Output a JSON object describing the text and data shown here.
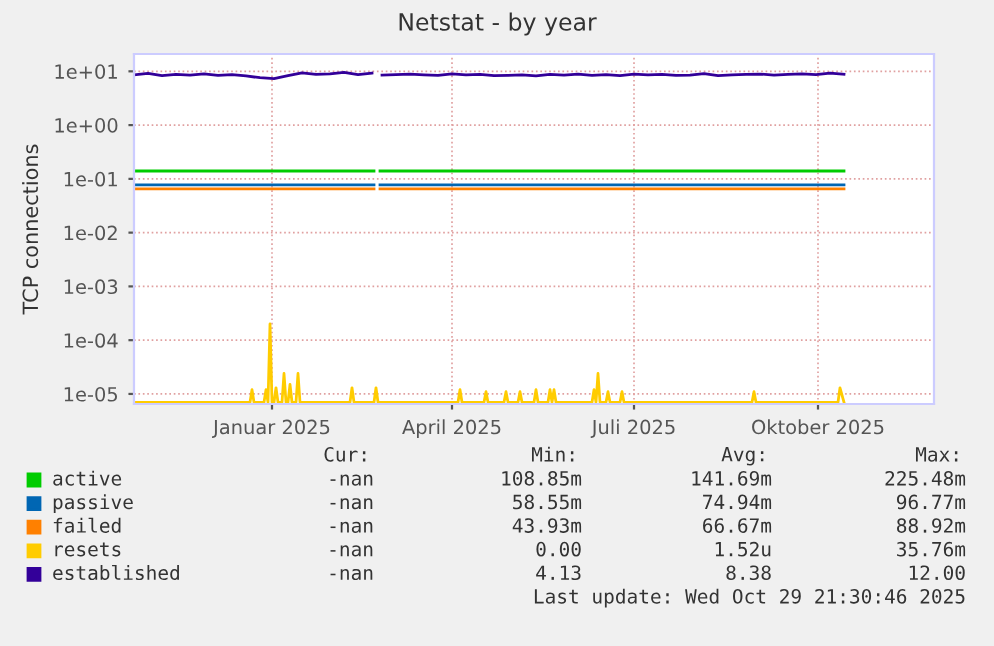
{
  "chart_data": {
    "type": "line",
    "title": "Netstat - by year",
    "ylabel": "TCP connections",
    "log": "y",
    "grid": true,
    "legend": "bottom",
    "marker": "none",
    "line_style": "solid",
    "xlim": [
      "2024-10-24",
      "2025-11-28"
    ],
    "xticks": [
      {
        "value": "2025-01-01",
        "label": "Januar 2025"
      },
      {
        "value": "2025-04-01",
        "label": "April 2025"
      },
      {
        "value": "2025-07-01",
        "label": "Juli 2025"
      },
      {
        "value": "2025-10-01",
        "label": "Oktober 2025"
      }
    ],
    "ylim": [
      6.5e-06,
      21
    ],
    "yticks": [
      {
        "value": 1e-05,
        "label": "1e-05"
      },
      {
        "value": 0.0001,
        "label": "1e-04"
      },
      {
        "value": 0.001,
        "label": "1e-03"
      },
      {
        "value": 0.01,
        "label": "1e-02"
      },
      {
        "value": 0.1,
        "label": "1e-01"
      },
      {
        "value": 1,
        "label": "1e+00"
      },
      {
        "value": 10,
        "label": "1e+01"
      }
    ],
    "series": [
      {
        "name": "active",
        "color": "#00cc00",
        "x": [
          "2024-10-24",
          "2025-02-21",
          "2025-02-22",
          "2025-02-24",
          "2025-10-14"
        ],
        "values": [
          0.14,
          0.14,
          null,
          0.14,
          0.14
        ]
      },
      {
        "name": "passive",
        "color": "#0066b3",
        "x": [
          "2024-10-24",
          "2025-02-21",
          "2025-02-22",
          "2025-02-24",
          "2025-10-14"
        ],
        "values": [
          0.077,
          0.077,
          null,
          0.077,
          0.077
        ]
      },
      {
        "name": "failed",
        "color": "#ff8000",
        "x": [
          "2024-10-24",
          "2025-02-21",
          "2025-02-22",
          "2025-02-24",
          "2025-10-14"
        ],
        "values": [
          0.065,
          0.065,
          null,
          0.065,
          0.065
        ]
      },
      {
        "name": "resets",
        "color": "#ffcc00",
        "x": [
          "2024-10-24",
          "2024-12-21",
          "2024-12-22",
          "2024-12-23",
          "2024-12-28",
          "2024-12-29",
          "2024-12-30",
          "2024-12-31",
          "2025-01-01",
          "2025-01-02",
          "2025-01-03",
          "2025-01-04",
          "2025-01-06",
          "2025-01-07",
          "2025-01-08",
          "2025-01-09",
          "2025-01-10",
          "2025-01-11",
          "2025-01-13",
          "2025-01-14",
          "2025-01-15",
          "2025-02-09",
          "2025-02-10",
          "2025-02-11",
          "2025-02-21",
          "2025-02-22",
          "2025-02-23",
          "2025-04-04",
          "2025-04-05",
          "2025-04-06",
          "2025-04-17",
          "2025-04-18",
          "2025-04-19",
          "2025-04-27",
          "2025-04-28",
          "2025-04-29",
          "2025-05-04",
          "2025-05-05",
          "2025-05-06",
          "2025-05-12",
          "2025-05-13",
          "2025-05-14",
          "2025-05-19",
          "2025-05-20",
          "2025-05-21",
          "2025-05-22",
          "2025-05-23",
          "2025-06-10",
          "2025-06-11",
          "2025-06-12",
          "2025-06-13",
          "2025-06-14",
          "2025-06-17",
          "2025-06-18",
          "2025-06-19",
          "2025-06-24",
          "2025-06-25",
          "2025-06-26",
          "2025-08-29",
          "2025-08-30",
          "2025-08-31",
          "2025-10-11",
          "2025-10-12",
          "2025-10-14"
        ],
        "values": [
          7e-06,
          7e-06,
          1.2e-05,
          7e-06,
          7e-06,
          1.2e-05,
          7e-06,
          0.0002,
          7e-06,
          7e-06,
          1.3e-05,
          7e-06,
          7e-06,
          2.4e-05,
          7e-06,
          7e-06,
          1.5e-05,
          7e-06,
          7e-06,
          2.4e-05,
          7e-06,
          7e-06,
          1.3e-05,
          7e-06,
          7e-06,
          1.3e-05,
          7e-06,
          7e-06,
          1.2e-05,
          7e-06,
          7e-06,
          1.1e-05,
          7e-06,
          7e-06,
          1.1e-05,
          7e-06,
          7e-06,
          1.1e-05,
          7e-06,
          7e-06,
          1.2e-05,
          7e-06,
          7e-06,
          1.2e-05,
          7e-06,
          1.2e-05,
          7e-06,
          7e-06,
          1.2e-05,
          7e-06,
          2.4e-05,
          7e-06,
          7e-06,
          1.1e-05,
          7e-06,
          7e-06,
          1.1e-05,
          7e-06,
          7e-06,
          1.1e-05,
          7e-06,
          7e-06,
          1.3e-05,
          7e-06
        ]
      },
      {
        "name": "established",
        "color": "#330099",
        "x": [
          "2024-10-24",
          "2024-10-31",
          "2024-11-07",
          "2024-11-14",
          "2024-11-21",
          "2024-11-28",
          "2024-12-05",
          "2024-12-12",
          "2024-12-19",
          "2024-12-26",
          "2025-01-02",
          "2025-01-09",
          "2025-01-16",
          "2025-01-23",
          "2025-01-30",
          "2025-02-06",
          "2025-02-13",
          "2025-02-20",
          "2025-02-22",
          "2025-02-25",
          "2025-03-04",
          "2025-03-11",
          "2025-03-18",
          "2025-03-25",
          "2025-04-01",
          "2025-04-08",
          "2025-04-15",
          "2025-04-22",
          "2025-04-29",
          "2025-05-06",
          "2025-05-13",
          "2025-05-20",
          "2025-05-27",
          "2025-06-03",
          "2025-06-10",
          "2025-06-17",
          "2025-06-24",
          "2025-07-01",
          "2025-07-08",
          "2025-07-15",
          "2025-07-22",
          "2025-07-29",
          "2025-08-05",
          "2025-08-12",
          "2025-08-19",
          "2025-08-26",
          "2025-09-02",
          "2025-09-09",
          "2025-09-16",
          "2025-09-23",
          "2025-09-30",
          "2025-10-07",
          "2025-10-14"
        ],
        "values": [
          8.6,
          9.2,
          8.3,
          8.8,
          8.5,
          9.0,
          8.4,
          8.7,
          8.2,
          7.6,
          7.3,
          8.3,
          9.4,
          8.8,
          9.0,
          9.6,
          8.7,
          9.3,
          null,
          8.5,
          8.7,
          8.9,
          8.6,
          8.4,
          9.0,
          8.6,
          8.8,
          8.3,
          8.4,
          8.6,
          8.2,
          8.8,
          8.5,
          8.9,
          8.4,
          8.7,
          8.3,
          8.9,
          8.6,
          8.8,
          8.4,
          8.5,
          9.1,
          8.3,
          8.6,
          8.8,
          8.9,
          8.5,
          8.8,
          9.0,
          8.7,
          9.3,
          8.8
        ]
      }
    ],
    "annotations": [
      "Cur:",
      "Min:",
      "Avg:",
      "Max:",
      "-nan",
      "108.85m",
      "141.69m",
      "225.48m",
      "-nan",
      "58.55m",
      "74.94m",
      "96.77m",
      "-nan",
      "43.93m",
      "66.67m",
      "88.92m",
      "-nan",
      "0.00",
      "1.52u",
      "35.76m",
      "-nan",
      "4.13",
      "8.38",
      "12.00",
      "Last update: Wed Oct 29 21:30:46 2025"
    ]
  }
}
